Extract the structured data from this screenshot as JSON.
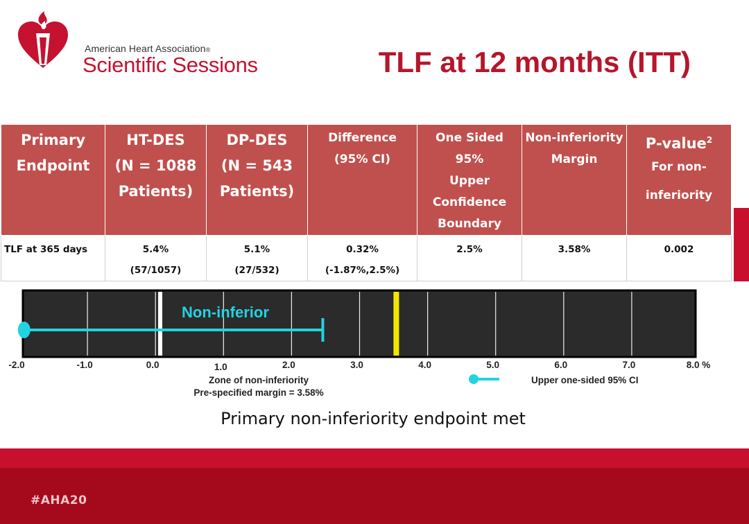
{
  "header": {
    "org": "American Heart Association",
    "reg_mark": "®",
    "sessions": "Scientific Sessions",
    "title": "TLF at 12 months (ITT)"
  },
  "table": {
    "headers": [
      [
        "Primary",
        "Endpoint"
      ],
      [
        "HT-DES",
        "(N = 1088",
        "Patients)"
      ],
      [
        "DP-DES",
        "(N = 543",
        "Patients)"
      ],
      [
        "Difference",
        "(95% CI)"
      ],
      [
        "One Sided 95%",
        "Upper",
        "Confidence",
        "Boundary"
      ],
      [
        "Non-inferiority",
        "Margin"
      ],
      [
        "P-value",
        "For non-",
        "inferiority"
      ]
    ],
    "pvalue_sup": "2",
    "row": {
      "label": "TLF at 365 days",
      "ht": "5.4%",
      "ht_n": "(57/1057)",
      "dp": "5.1%",
      "dp_n": "(27/532)",
      "diff": "0.32%",
      "diff_ci": "(-1.87%,2.5%)",
      "upper": "2.5%",
      "margin": "3.58%",
      "p": "0.002"
    }
  },
  "chart_data": {
    "type": "forest",
    "x_ticks": [
      "-2.0",
      "-1.0",
      "0.0",
      "1.0",
      "2.0",
      "3.0",
      "4.0",
      "5.0",
      "6.0",
      "7.0",
      "8.0 %"
    ],
    "xlim": [
      -2.0,
      8.0
    ],
    "zero_line": 0.1,
    "interval": {
      "low": -1.87,
      "high": 2.5
    },
    "margin_line": 3.58,
    "annotation": "Non-inferior",
    "zone_label": [
      "Zone of non-inferiority",
      "Pre-specified margin = 3.58%"
    ],
    "legend_label": "Upper one-sided 95% CI",
    "colors": {
      "background": "#2b2b2b",
      "interval": "#22d3e0",
      "margin": "#f5e600",
      "zero": "#ffffff"
    }
  },
  "conclusion": "Primary non-inferiority endpoint met",
  "footer": {
    "hashtag": "#AHA20"
  }
}
